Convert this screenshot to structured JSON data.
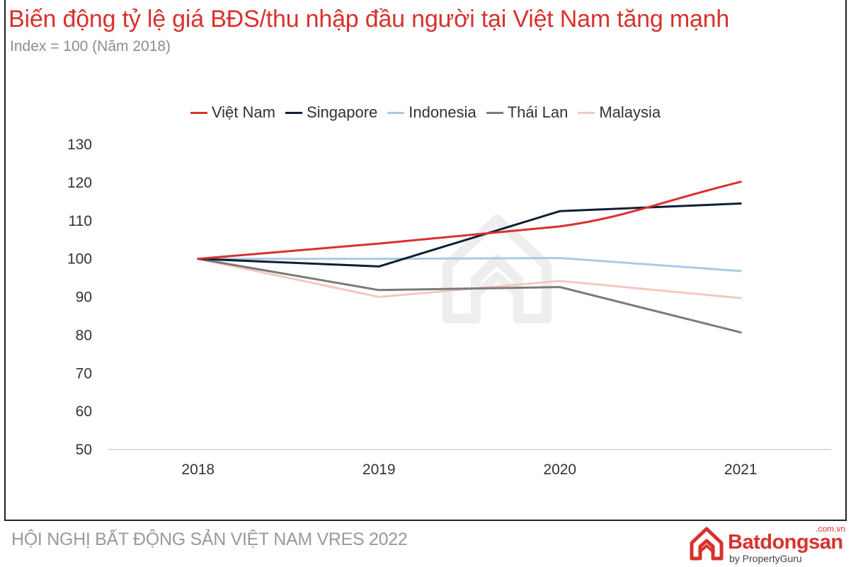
{
  "header": {
    "title": "Biến động tỷ lệ giá BĐS/thu nhập đầu người tại Việt Nam tăng mạnh",
    "subtitle": "Index = 100 (Năm 2018)"
  },
  "footer": {
    "text": "HỘI NGHỊ BẤT ĐỘNG SẢN VIỆT NAM VRES 2022",
    "logo_domain": ".com.vn",
    "logo_name": "Batdongsan",
    "logo_by": "by PropertyGuru"
  },
  "colors": {
    "title": "#d7322d",
    "vietnam": "#d7322d",
    "singapore": "#0f1f33",
    "indonesia": "#a9cbe3",
    "thailand": "#7a7a7a",
    "malaysia": "#f6c6c3"
  },
  "chart_data": {
    "type": "line",
    "title": "Biến động tỷ lệ giá BĐS/thu nhập đầu người tại Việt Nam tăng mạnh",
    "subtitle": "Index = 100 (Năm 2018)",
    "categories": [
      "2018",
      "2019",
      "2020",
      "2021"
    ],
    "ylim": [
      50,
      130
    ],
    "yticks": [
      "50",
      "60",
      "70",
      "80",
      "90",
      "100",
      "110",
      "120",
      "130"
    ],
    "grid": false,
    "legend": "top-center",
    "series": [
      {
        "name": "Việt Nam",
        "values": [
          100,
          104,
          108.5,
          120.2
        ],
        "color": "#d7322d"
      },
      {
        "name": "Singapore",
        "values": [
          100,
          98,
          112.5,
          114.5
        ],
        "color": "#0f1f33"
      },
      {
        "name": "Indonesia",
        "values": [
          100,
          100,
          100.2,
          96.8
        ],
        "color": "#a9cbe3"
      },
      {
        "name": "Thái Lan",
        "values": [
          100,
          91.8,
          92.6,
          80.7
        ],
        "color": "#7a7a7a"
      },
      {
        "name": "Malaysia",
        "values": [
          100,
          90,
          94.2,
          89.7
        ],
        "color": "#f6c6c3"
      }
    ]
  }
}
